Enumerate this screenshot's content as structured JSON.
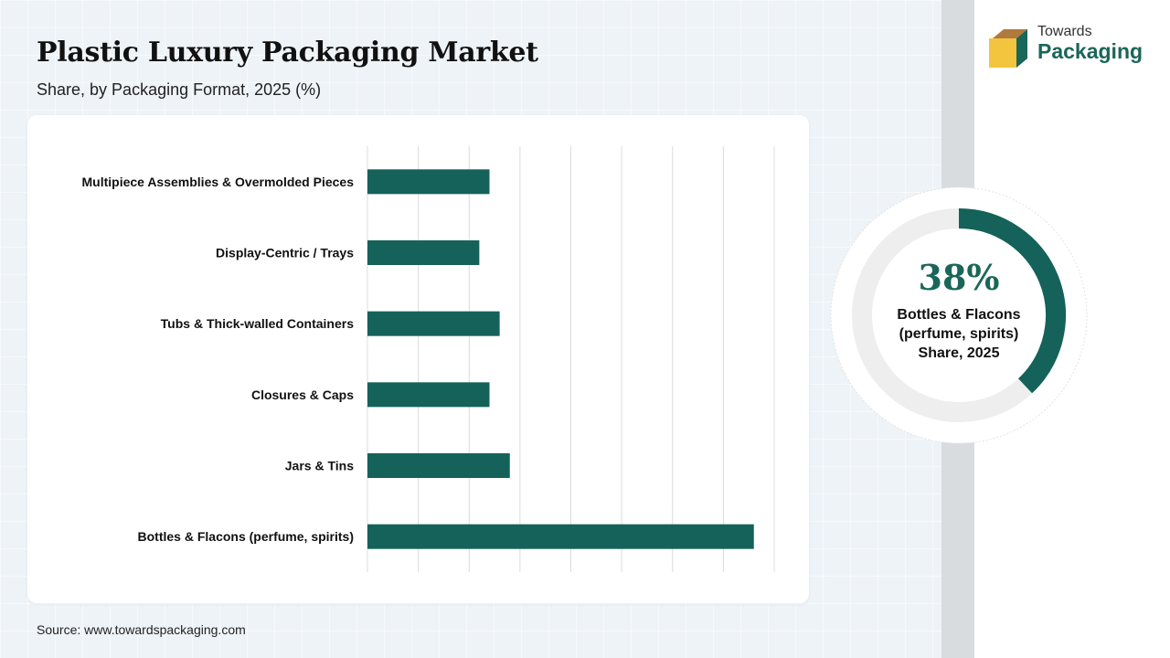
{
  "title": "Plastic Luxury Packaging Market",
  "subtitle": "Share, by Packaging Format, 2025 (%)",
  "source": "Source: www.towardspackaging.com",
  "logo": {
    "line1": "Towards",
    "line2": "Packaging"
  },
  "colors": {
    "bar": "#14625a",
    "grid": "#dcdcdc",
    "donut_track": "#eeeeee",
    "accent": "#1a6659"
  },
  "chart_data": {
    "type": "bar",
    "orientation": "horizontal",
    "categories": [
      "Multipiece Assemblies & Overmolded Pieces",
      "Display-Centric / Trays",
      "Tubs & Thick-walled Containers",
      "Closures & Caps",
      "Jars & Tins",
      "Bottles & Flacons (perfume, spirits)"
    ],
    "values": [
      12,
      11,
      13,
      12,
      14,
      38
    ],
    "xlim": [
      0,
      40
    ],
    "grid": true,
    "title": "",
    "xlabel": "",
    "ylabel": ""
  },
  "highlight": {
    "value_text": "38%",
    "percent": 38,
    "label_lines": [
      "Bottles & Flacons",
      "(perfume, spirits)",
      "Share, 2025"
    ]
  }
}
